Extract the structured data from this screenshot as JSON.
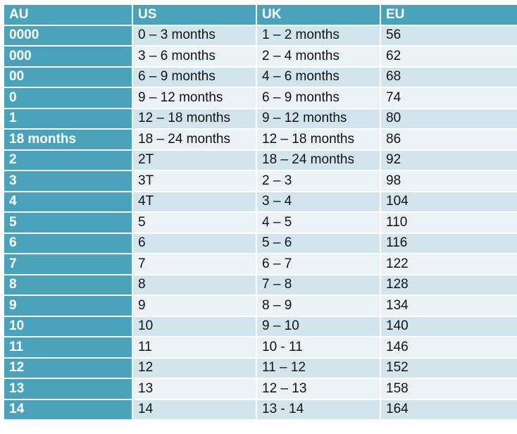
{
  "table": {
    "headers": [
      "AU",
      "US",
      "UK",
      "EU"
    ],
    "rows": [
      [
        "0000",
        "0 – 3 months",
        "1 – 2 months",
        "56"
      ],
      [
        "000",
        "3 – 6 months",
        "2 – 4 months",
        "62"
      ],
      [
        "00",
        "6 – 9 months",
        "4 – 6 months",
        "68"
      ],
      [
        "0",
        "9 – 12 months",
        "6 – 9 months",
        "74"
      ],
      [
        "1",
        "12 – 18 months",
        "9 – 12 months",
        "80"
      ],
      [
        "18 months",
        "18 – 24 months",
        "12 – 18 months",
        "86"
      ],
      [
        "2",
        "2T",
        "18 – 24 months",
        "92"
      ],
      [
        "3",
        "3T",
        "2 – 3",
        "98"
      ],
      [
        "4",
        "4T",
        "3 – 4",
        "104"
      ],
      [
        "5",
        "5",
        "4 – 5",
        "110"
      ],
      [
        "6",
        "6",
        "5 – 6",
        "116"
      ],
      [
        "7",
        "7",
        "6 – 7",
        "122"
      ],
      [
        "8",
        "8",
        "7 – 8",
        "128"
      ],
      [
        "9",
        "9",
        "8 – 9",
        "134"
      ],
      [
        "10",
        "10",
        "9 – 10",
        "140"
      ],
      [
        "11",
        "11",
        "10 - 11",
        "146"
      ],
      [
        "12",
        "12",
        "11 – 12",
        "152"
      ],
      [
        "13",
        "13",
        "12 – 13",
        "158"
      ],
      [
        "14",
        "14",
        "13 - 14",
        "164"
      ]
    ]
  },
  "colors": {
    "header_bg": "#4aa3bb",
    "row_dark": "#d3e5ec",
    "row_light": "#eaf2f5"
  }
}
